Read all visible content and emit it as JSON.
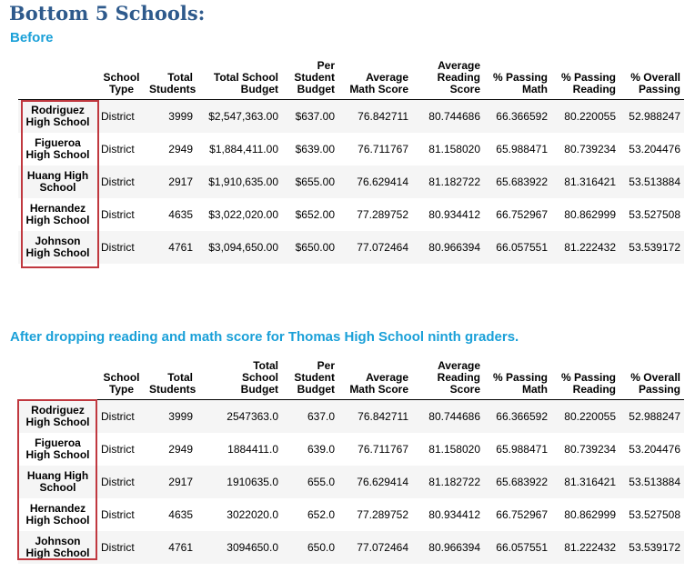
{
  "title": "Bottom 5 Schools:",
  "sections": [
    {
      "heading": "Before",
      "columns": {
        "school_type": [
          "School",
          "Type"
        ],
        "total_students": [
          "Total",
          "Students"
        ],
        "total_budget": [
          "Total School",
          "Budget"
        ],
        "per_student_budget": [
          "Per",
          "Student",
          "Budget"
        ],
        "avg_math": [
          "Average",
          "Math Score"
        ],
        "avg_reading": [
          "Average",
          "Reading",
          "Score"
        ],
        "pct_math": [
          "% Passing",
          "Math"
        ],
        "pct_reading": [
          "% Passing",
          "Reading"
        ],
        "pct_overall": [
          "% Overall",
          "Passing"
        ]
      },
      "rows": [
        {
          "name": [
            "Rodriguez",
            "High School"
          ],
          "type": "District",
          "students": "3999",
          "budget": "$2,547,363.00",
          "per_student": "$637.00",
          "avg_math": "76.842711",
          "avg_reading": "80.744686",
          "pct_math": "66.366592",
          "pct_reading": "80.220055",
          "pct_overall": "52.988247"
        },
        {
          "name": [
            "Figueroa",
            "High School"
          ],
          "type": "District",
          "students": "2949",
          "budget": "$1,884,411.00",
          "per_student": "$639.00",
          "avg_math": "76.711767",
          "avg_reading": "81.158020",
          "pct_math": "65.988471",
          "pct_reading": "80.739234",
          "pct_overall": "53.204476"
        },
        {
          "name": [
            "Huang High",
            "School"
          ],
          "type": "District",
          "students": "2917",
          "budget": "$1,910,635.00",
          "per_student": "$655.00",
          "avg_math": "76.629414",
          "avg_reading": "81.182722",
          "pct_math": "65.683922",
          "pct_reading": "81.316421",
          "pct_overall": "53.513884"
        },
        {
          "name": [
            "Hernandez",
            "High School"
          ],
          "type": "District",
          "students": "4635",
          "budget": "$3,022,020.00",
          "per_student": "$652.00",
          "avg_math": "77.289752",
          "avg_reading": "80.934412",
          "pct_math": "66.752967",
          "pct_reading": "80.862999",
          "pct_overall": "53.527508"
        },
        {
          "name": [
            "Johnson",
            "High School"
          ],
          "type": "District",
          "students": "4761",
          "budget": "$3,094,650.00",
          "per_student": "$650.00",
          "avg_math": "77.072464",
          "avg_reading": "80.966394",
          "pct_math": "66.057551",
          "pct_reading": "81.222432",
          "pct_overall": "53.539172"
        }
      ]
    },
    {
      "heading": "After dropping reading and math score for Thomas High School ninth graders.",
      "columns": {
        "school_type": [
          "School",
          "Type"
        ],
        "total_students": [
          "Total",
          "Students"
        ],
        "total_budget": [
          "Total",
          "School",
          "Budget"
        ],
        "per_student_budget": [
          "Per",
          "Student",
          "Budget"
        ],
        "avg_math": [
          "Average",
          "Math Score"
        ],
        "avg_reading": [
          "Average",
          "Reading",
          "Score"
        ],
        "pct_math": [
          "% Passing",
          "Math"
        ],
        "pct_reading": [
          "% Passing",
          "Reading"
        ],
        "pct_overall": [
          "% Overall",
          "Passing"
        ]
      },
      "rows": [
        {
          "name": [
            "Rodriguez",
            "High School"
          ],
          "type": "District",
          "students": "3999",
          "budget": "2547363.0",
          "per_student": "637.0",
          "avg_math": "76.842711",
          "avg_reading": "80.744686",
          "pct_math": "66.366592",
          "pct_reading": "80.220055",
          "pct_overall": "52.988247"
        },
        {
          "name": [
            "Figueroa",
            "High School"
          ],
          "type": "District",
          "students": "2949",
          "budget": "1884411.0",
          "per_student": "639.0",
          "avg_math": "76.711767",
          "avg_reading": "81.158020",
          "pct_math": "65.988471",
          "pct_reading": "80.739234",
          "pct_overall": "53.204476"
        },
        {
          "name": [
            "Huang High",
            "School"
          ],
          "type": "District",
          "students": "2917",
          "budget": "1910635.0",
          "per_student": "655.0",
          "avg_math": "76.629414",
          "avg_reading": "81.182722",
          "pct_math": "65.683922",
          "pct_reading": "81.316421",
          "pct_overall": "53.513884"
        },
        {
          "name": [
            "Hernandez",
            "High School"
          ],
          "type": "District",
          "students": "4635",
          "budget": "3022020.0",
          "per_student": "652.0",
          "avg_math": "77.289752",
          "avg_reading": "80.934412",
          "pct_math": "66.752967",
          "pct_reading": "80.862999",
          "pct_overall": "53.527508"
        },
        {
          "name": [
            "Johnson",
            "High School"
          ],
          "type": "District",
          "students": "4761",
          "budget": "3094650.0",
          "per_student": "650.0",
          "avg_math": "77.072464",
          "avg_reading": "80.966394",
          "pct_math": "66.057551",
          "pct_reading": "81.222432",
          "pct_overall": "53.539172"
        }
      ]
    }
  ],
  "colors": {
    "title": "#2e5a8c",
    "section_heading": "#1aa0d8",
    "highlight_box": "#c0383f",
    "row_stripe": "#f5f5f5"
  }
}
